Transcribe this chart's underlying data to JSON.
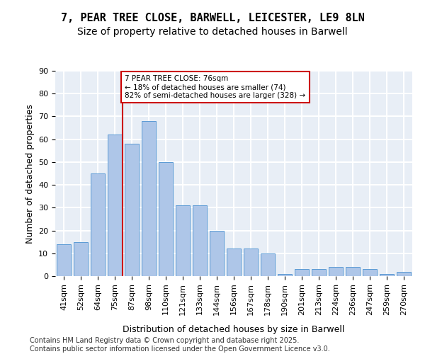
{
  "title_line1": "7, PEAR TREE CLOSE, BARWELL, LEICESTER, LE9 8LN",
  "title_line2": "Size of property relative to detached houses in Barwell",
  "xlabel": "Distribution of detached houses by size in Barwell",
  "ylabel": "Number of detached properties",
  "categories": [
    "41sqm",
    "52sqm",
    "64sqm",
    "75sqm",
    "87sqm",
    "98sqm",
    "110sqm",
    "121sqm",
    "133sqm",
    "144sqm",
    "156sqm",
    "167sqm",
    "178sqm",
    "190sqm",
    "201sqm",
    "213sqm",
    "224sqm",
    "236sqm",
    "247sqm",
    "259sqm",
    "270sqm"
  ],
  "bar_values": [
    14,
    15,
    45,
    62,
    58,
    68,
    50,
    31,
    31,
    20,
    12,
    12,
    10,
    1,
    3,
    3,
    4,
    4,
    3,
    1,
    2
  ],
  "bar_color": "#aec6e8",
  "bar_edge_color": "#5b9bd5",
  "background_color": "#e8eef6",
  "grid_color": "#ffffff",
  "vline_color": "#cc0000",
  "vline_pos": 3.45,
  "annotation_text": "7 PEAR TREE CLOSE: 76sqm\n← 18% of detached houses are smaller (74)\n82% of semi-detached houses are larger (328) →",
  "ylim": [
    0,
    90
  ],
  "yticks": [
    0,
    10,
    20,
    30,
    40,
    50,
    60,
    70,
    80,
    90
  ],
  "footer": "Contains HM Land Registry data © Crown copyright and database right 2025.\nContains public sector information licensed under the Open Government Licence v3.0.",
  "title_fontsize": 11,
  "subtitle_fontsize": 10,
  "axis_label_fontsize": 9,
  "tick_fontsize": 8,
  "footer_fontsize": 7
}
